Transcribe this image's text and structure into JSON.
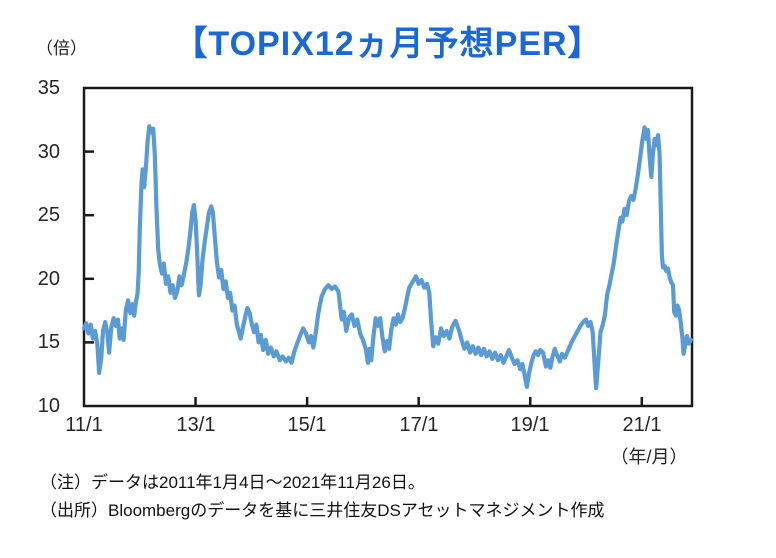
{
  "chart_data": {
    "type": "line",
    "title": "【TOPIX12ヵ月予想PER】",
    "title_color": "#1a68d8",
    "y_unit_label": "（倍）",
    "x_unit_label": "（年/月）",
    "ylim": [
      10,
      35
    ],
    "y_ticks": [
      35,
      30,
      25,
      20,
      15,
      10
    ],
    "x_tick_labels": [
      "11/1",
      "13/1",
      "15/1",
      "17/1",
      "19/1",
      "21/1"
    ],
    "x_ticks_years": [
      0,
      2,
      4,
      6,
      8,
      10
    ],
    "x_range_years": [
      0,
      10.9
    ],
    "x_range_dates": [
      "2011/01",
      "2021/11"
    ],
    "grid": false,
    "legend": "none",
    "line_color": "#5b9bd5",
    "axis_color": "#1a1a1a",
    "series": [
      {
        "name": "TOPIX 12ヵ月予想PER（倍）",
        "t_years_from_2011_jan": [
          0.0,
          0.04,
          0.08,
          0.12,
          0.16,
          0.2,
          0.24,
          0.27,
          0.31,
          0.34,
          0.38,
          0.42,
          0.45,
          0.49,
          0.53,
          0.57,
          0.61,
          0.64,
          0.68,
          0.71,
          0.75,
          0.79,
          0.83,
          0.87,
          0.9,
          0.93,
          0.96,
          0.98,
          1.0,
          1.03,
          1.05,
          1.08,
          1.11,
          1.14,
          1.17,
          1.21,
          1.24,
          1.27,
          1.3,
          1.33,
          1.36,
          1.4,
          1.43,
          1.47,
          1.51,
          1.55,
          1.59,
          1.63,
          1.67,
          1.71,
          1.75,
          1.79,
          1.83,
          1.87,
          1.91,
          1.94,
          1.97,
          2.0,
          2.03,
          2.06,
          2.09,
          2.12,
          2.16,
          2.2,
          2.24,
          2.28,
          2.31,
          2.34,
          2.38,
          2.42,
          2.46,
          2.5,
          2.54,
          2.58,
          2.62,
          2.66,
          2.7,
          2.74,
          2.78,
          2.81,
          2.85,
          2.89,
          2.93,
          2.97,
          3.01,
          3.05,
          3.09,
          3.13,
          3.17,
          3.21,
          3.26,
          3.3,
          3.35,
          3.4,
          3.45,
          3.51,
          3.56,
          3.62,
          3.67,
          3.72,
          3.78,
          3.83,
          3.88,
          3.93,
          3.98,
          4.03,
          4.07,
          4.11,
          4.15,
          4.2,
          4.26,
          4.32,
          4.38,
          4.44,
          4.5,
          4.56,
          4.62,
          4.66,
          4.7,
          4.75,
          4.8,
          4.85,
          4.9,
          4.95,
          5.0,
          5.05,
          5.09,
          5.12,
          5.15,
          5.19,
          5.23,
          5.27,
          5.31,
          5.35,
          5.39,
          5.43,
          5.47,
          5.51,
          5.55,
          5.59,
          5.63,
          5.67,
          5.71,
          5.75,
          5.79,
          5.83,
          5.87,
          5.91,
          5.95,
          6.0,
          6.05,
          6.1,
          6.15,
          6.19,
          6.22,
          6.26,
          6.3,
          6.35,
          6.4,
          6.45,
          6.5,
          6.55,
          6.6,
          6.66,
          6.72,
          6.77,
          6.82,
          6.87,
          6.92,
          6.97,
          7.02,
          7.07,
          7.12,
          7.17,
          7.22,
          7.27,
          7.32,
          7.37,
          7.42,
          7.47,
          7.52,
          7.57,
          7.62,
          7.67,
          7.72,
          7.77,
          7.82,
          7.86,
          7.9,
          7.94,
          7.98,
          8.02,
          8.06,
          8.1,
          8.14,
          8.18,
          8.23,
          8.28,
          8.32,
          8.36,
          8.4,
          8.44,
          8.48,
          8.53,
          8.57,
          8.62,
          8.66,
          8.7,
          8.75,
          8.8,
          8.85,
          8.9,
          8.95,
          9.0,
          9.04,
          9.08,
          9.12,
          9.15,
          9.18,
          9.22,
          9.26,
          9.3,
          9.34,
          9.38,
          9.42,
          9.46,
          9.5,
          9.54,
          9.58,
          9.62,
          9.65,
          9.69,
          9.73,
          9.77,
          9.81,
          9.85,
          9.89,
          9.93,
          9.97,
          10.01,
          10.05,
          10.08,
          10.11,
          10.14,
          10.17,
          10.2,
          10.23,
          10.26,
          10.29,
          10.32,
          10.34,
          10.36,
          10.38,
          10.41,
          10.44,
          10.47,
          10.5,
          10.53,
          10.56,
          10.58,
          10.61,
          10.64,
          10.67,
          10.7,
          10.73,
          10.75,
          10.78,
          10.81,
          10.84,
          10.88
        ],
        "values": [
          16.1,
          16.5,
          15.7,
          16.4,
          15.3,
          15.9,
          14.8,
          12.6,
          13.8,
          15.9,
          16.6,
          15.7,
          14.2,
          16.2,
          16.9,
          16.3,
          16.8,
          15.3,
          16.1,
          15.2,
          17.5,
          18.3,
          17.3,
          18.0,
          17.1,
          18.2,
          18.8,
          20.5,
          24.0,
          27.5,
          28.6,
          27.2,
          28.8,
          30.8,
          32.0,
          31.5,
          31.8,
          29.8,
          25.5,
          22.3,
          21.1,
          20.4,
          21.2,
          19.6,
          20.2,
          18.9,
          19.5,
          18.5,
          19.0,
          20.2,
          19.5,
          20.3,
          21.2,
          22.3,
          23.8,
          25.2,
          25.8,
          24.6,
          22.0,
          18.7,
          19.5,
          21.3,
          22.8,
          24.0,
          25.2,
          25.7,
          25.2,
          23.6,
          21.4,
          20.1,
          20.7,
          19.2,
          19.8,
          18.5,
          18.9,
          17.5,
          17.9,
          16.4,
          15.8,
          15.3,
          16.2,
          17.0,
          17.7,
          17.3,
          16.4,
          15.8,
          16.4,
          15.0,
          15.6,
          14.4,
          15.2,
          14.1,
          14.6,
          13.9,
          14.3,
          13.6,
          13.9,
          13.5,
          13.8,
          13.4,
          14.4,
          15.0,
          15.6,
          16.1,
          15.7,
          15.0,
          15.5,
          14.6,
          15.6,
          17.3,
          18.6,
          19.2,
          19.5,
          19.2,
          19.4,
          19.0,
          16.8,
          17.4,
          15.9,
          16.9,
          17.2,
          16.3,
          16.8,
          15.7,
          15.2,
          14.5,
          13.4,
          14.5,
          13.6,
          15.5,
          16.9,
          16.3,
          16.9,
          15.4,
          14.3,
          15.1,
          14.5,
          16.0,
          16.9,
          16.4,
          17.2,
          16.6,
          16.9,
          17.6,
          18.5,
          19.3,
          19.6,
          19.9,
          20.2,
          19.6,
          19.9,
          19.3,
          19.6,
          18.9,
          16.8,
          14.7,
          15.4,
          14.9,
          16.1,
          15.5,
          15.9,
          15.3,
          16.2,
          16.7,
          16.0,
          15.2,
          14.5,
          15.0,
          14.2,
          14.7,
          14.1,
          14.6,
          14.0,
          14.5,
          13.9,
          14.3,
          13.7,
          14.2,
          13.6,
          14.0,
          13.4,
          13.9,
          14.4,
          13.8,
          13.3,
          13.6,
          12.9,
          13.3,
          12.4,
          11.5,
          12.6,
          13.4,
          14.0,
          14.3,
          14.0,
          14.4,
          14.2,
          13.1,
          13.6,
          13.0,
          13.9,
          14.5,
          14.0,
          13.5,
          14.1,
          13.8,
          14.2,
          14.6,
          15.1,
          15.5,
          15.9,
          16.3,
          16.6,
          16.8,
          16.3,
          16.6,
          15.8,
          13.6,
          11.4,
          13.5,
          15.8,
          16.4,
          17.2,
          18.8,
          19.5,
          20.4,
          21.3,
          22.6,
          23.8,
          24.8,
          24.5,
          25.5,
          25.0,
          26.1,
          26.5,
          26.2,
          27.1,
          28.2,
          29.5,
          30.9,
          31.9,
          31.0,
          31.7,
          29.6,
          28.0,
          29.9,
          31.0,
          30.5,
          31.3,
          29.8,
          25.5,
          21.8,
          20.9,
          21.0,
          20.6,
          20.8,
          20.1,
          19.7,
          19.5,
          17.4,
          17.1,
          17.9,
          17.5,
          16.5,
          15.3,
          14.1,
          14.9,
          15.5,
          14.9,
          15.2
        ]
      }
    ],
    "notes": [
      "（注）データは2011年1月4日～2021年11月26日。",
      "（出所）Bloombergのデータを基に三井住友DSアセットマネジメント作成"
    ]
  }
}
